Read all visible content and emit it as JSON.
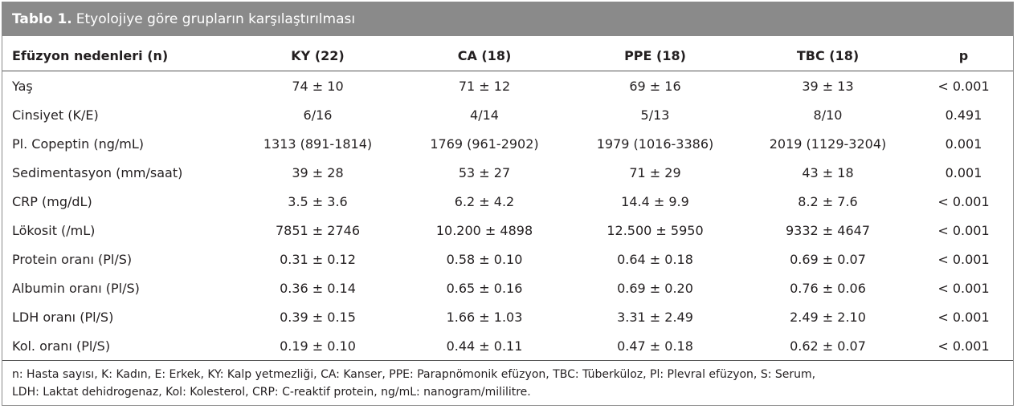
{
  "title": {
    "label": "Tablo 1.",
    "text": "Etyolojiye göre grupların karşılaştırılması"
  },
  "table": {
    "header": [
      "Efüzyon nedenleri (n)",
      "KY (22)",
      "CA (18)",
      "PPE (18)",
      "TBC (18)",
      "p"
    ],
    "rows": [
      [
        "Yaş",
        "74 ± 10",
        "71 ± 12",
        "69 ± 16",
        "39 ± 13",
        "< 0.001"
      ],
      [
        "Cinsiyet (K/E)",
        "6/16",
        "4/14",
        "5/13",
        "8/10",
        "0.491"
      ],
      [
        "Pl. Copeptin (ng/mL)",
        "1313 (891-1814)",
        "1769 (961-2902)",
        "1979 (1016-3386)",
        "2019 (1129-3204)",
        "0.001"
      ],
      [
        "Sedimentasyon (mm/saat)",
        "39 ± 28",
        "53 ± 27",
        "71 ± 29",
        "43 ± 18",
        "0.001"
      ],
      [
        "CRP (mg/dL)",
        "3.5 ± 3.6",
        "6.2 ± 4.2",
        "14.4 ± 9.9",
        "8.2 ± 7.6",
        "< 0.001"
      ],
      [
        "Lökosit (/mL)",
        "7851 ± 2746",
        "10.200 ± 4898",
        "12.500 ± 5950",
        "9332 ± 4647",
        "< 0.001"
      ],
      [
        "Protein oranı (Pl/S)",
        "0.31 ± 0.12",
        "0.58 ± 0.10",
        "0.64 ± 0.18",
        "0.69 ± 0.07",
        "< 0.001"
      ],
      [
        "Albumin oranı (Pl/S)",
        "0.36 ± 0.14",
        "0.65 ± 0.16",
        "0.69 ± 0.20",
        "0.76 ± 0.06",
        "< 0.001"
      ],
      [
        "LDH oranı (Pl/S)",
        "0.39 ± 0.15",
        "1.66 ± 1.03",
        "3.31 ± 2.49",
        "2.49 ± 2.10",
        "< 0.001"
      ],
      [
        "Kol. oranı (Pl/S)",
        "0.19 ± 0.10",
        "0.44 ± 0.11",
        "0.47 ± 0.18",
        "0.62 ± 0.07",
        "< 0.001"
      ]
    ]
  },
  "footnote": [
    "n: Hasta sayısı, K: Kadın, E: Erkek, KY: Kalp yetmezliği, CA: Kanser, PPE: Parapnömonik efüzyon, TBC: Tüberküloz, Pl: Plevral efüzyon, S: Serum,",
    "LDH: Laktat dehidrogenaz, Kol: Kolesterol, CRP: C-reaktif protein, ng/mL: nanogram/mililitre."
  ]
}
